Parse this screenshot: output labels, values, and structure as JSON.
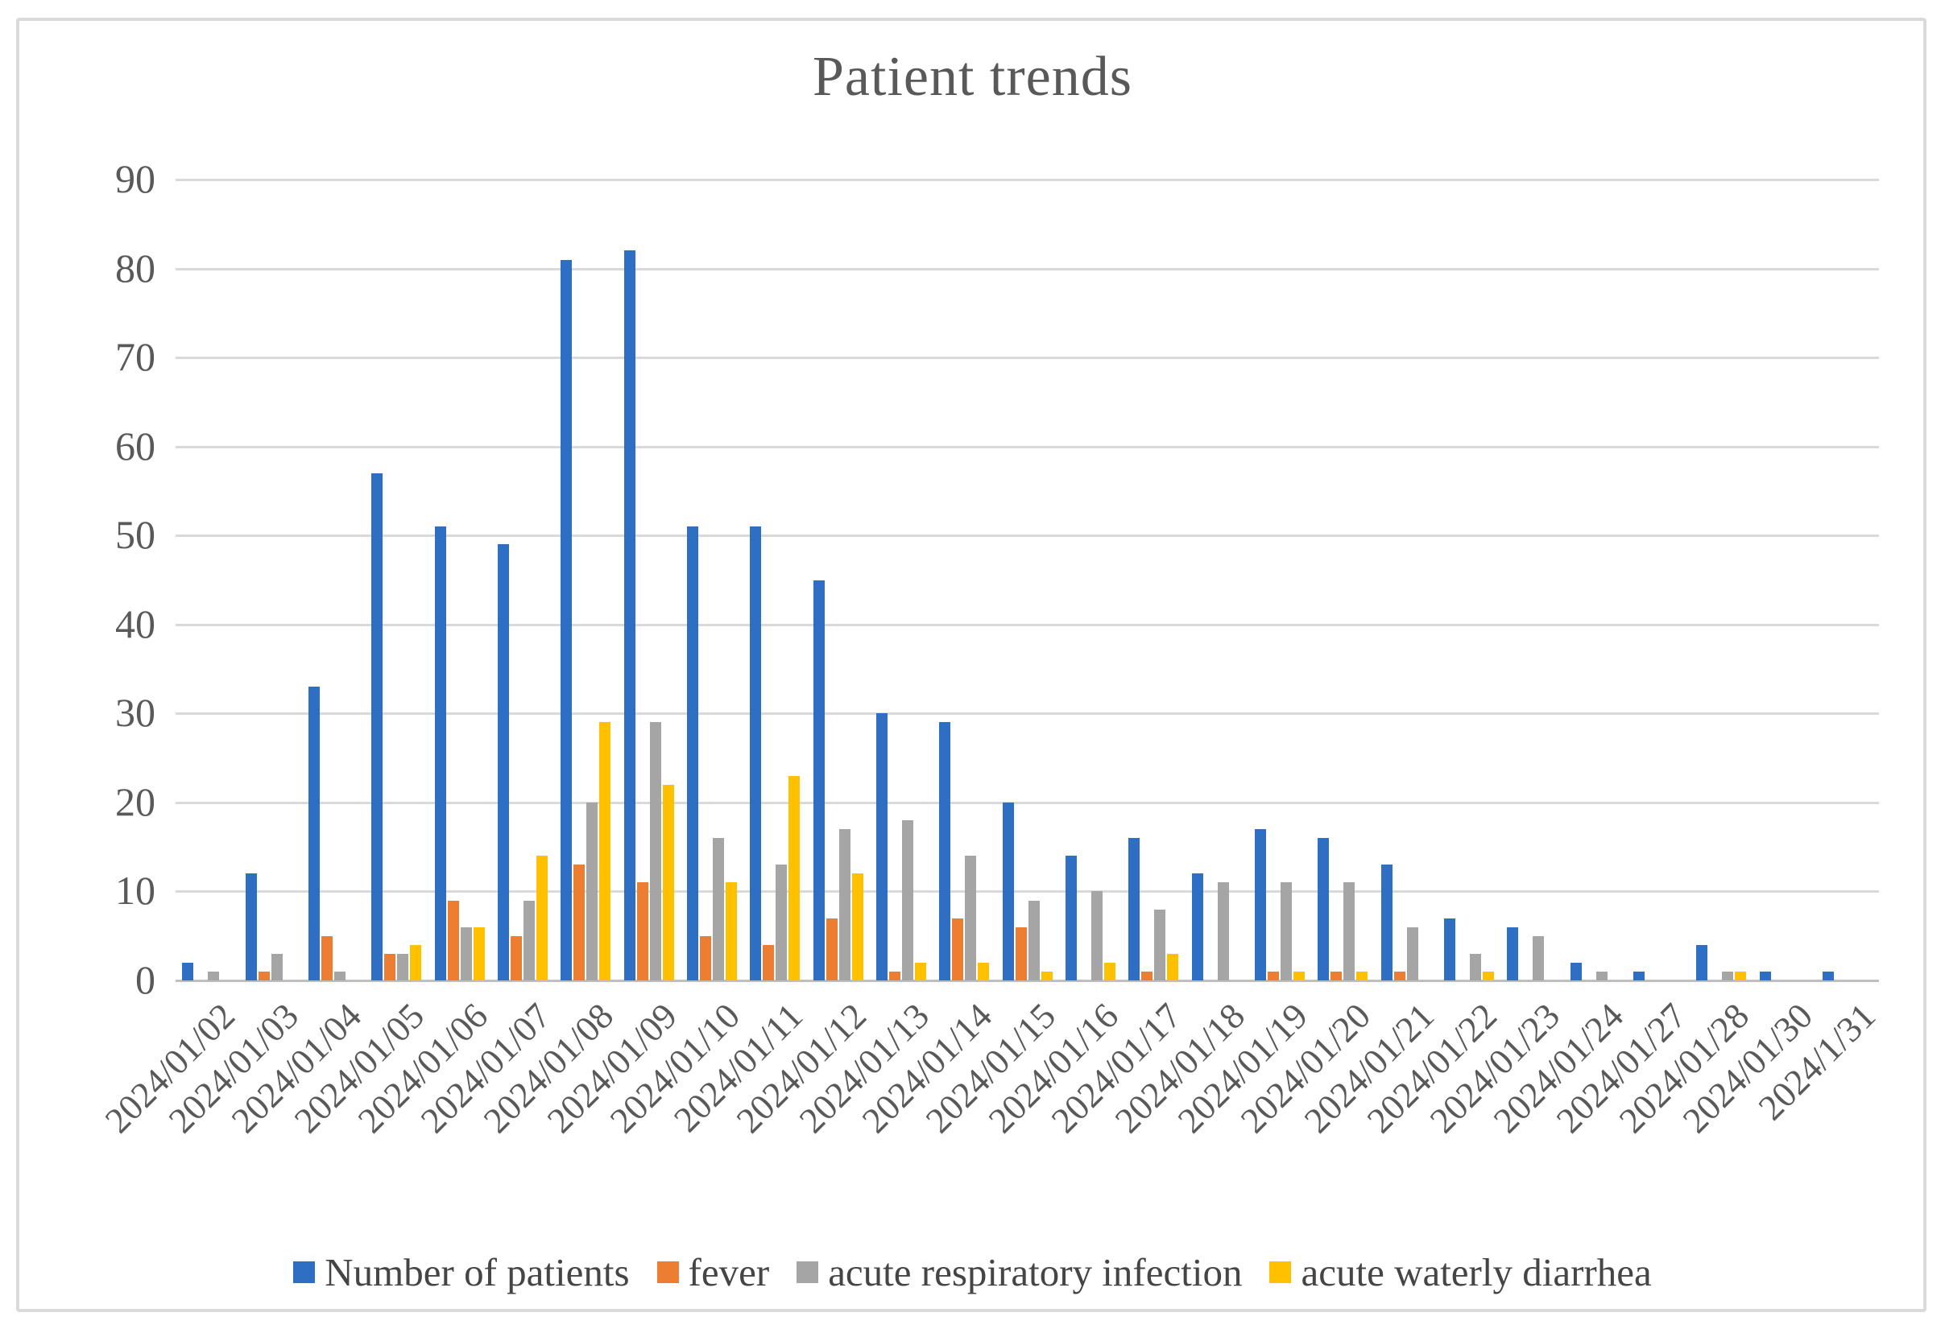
{
  "title": "Patient trends",
  "colors": {
    "patients_blue": "#2E6FC4",
    "fever_orange": "#ED7D31",
    "ari_gray": "#A5A5A5",
    "awd_yellow": "#FFC000",
    "title_text": "#595959",
    "axis_text": "#595959",
    "legend_text": "#454545",
    "gridline": "#D9D9D9",
    "axis_line": "#BFBFBF",
    "frame_border": "#DADADA"
  },
  "chart_data": {
    "type": "bar",
    "title": "Patient trends",
    "xlabel": "",
    "ylabel": "",
    "ylim": [
      0,
      90
    ],
    "ytick_step": 10,
    "grid": "horizontal",
    "legend_position": "bottom",
    "categories": [
      "2024/01/02",
      "2024/01/03",
      "2024/01/04",
      "2024/01/05",
      "2024/01/06",
      "2024/01/07",
      "2024/01/08",
      "2024/01/09",
      "2024/01/10",
      "2024/01/11",
      "2024/01/12",
      "2024/01/13",
      "2024/01/14",
      "2024/01/15",
      "2024/01/16",
      "2024/01/17",
      "2024/01/18",
      "2024/01/19",
      "2024/01/20",
      "2024/01/21",
      "2024/01/22",
      "2024/01/23",
      "2024/01/24",
      "2024/01/27",
      "2024/01/28",
      "2024/01/30",
      "2024/1/31"
    ],
    "series": [
      {
        "name": "Number of patients",
        "color": "#2E6FC4",
        "values": [
          2,
          12,
          33,
          57,
          51,
          49,
          81,
          82,
          51,
          51,
          45,
          30,
          29,
          20,
          14,
          16,
          12,
          17,
          16,
          13,
          7,
          6,
          2,
          1,
          4,
          1,
          1
        ]
      },
      {
        "name": "fever",
        "color": "#ED7D31",
        "values": [
          0,
          1,
          5,
          3,
          9,
          5,
          13,
          11,
          5,
          4,
          7,
          1,
          7,
          6,
          0,
          1,
          0,
          1,
          1,
          1,
          0,
          0,
          0,
          0,
          0,
          0,
          0
        ]
      },
      {
        "name": "acute respiratory infection",
        "color": "#A5A5A5",
        "values": [
          1,
          3,
          1,
          3,
          6,
          9,
          20,
          29,
          16,
          13,
          17,
          18,
          14,
          9,
          10,
          8,
          11,
          11,
          11,
          6,
          3,
          5,
          1,
          0,
          1,
          0,
          0
        ]
      },
      {
        "name": "acute waterly diarrhea",
        "color": "#FFC000",
        "values": [
          0,
          0,
          0,
          4,
          6,
          14,
          29,
          22,
          11,
          23,
          12,
          2,
          2,
          1,
          2,
          3,
          0,
          1,
          1,
          0,
          1,
          0,
          0,
          0,
          1,
          0,
          0
        ]
      }
    ]
  }
}
